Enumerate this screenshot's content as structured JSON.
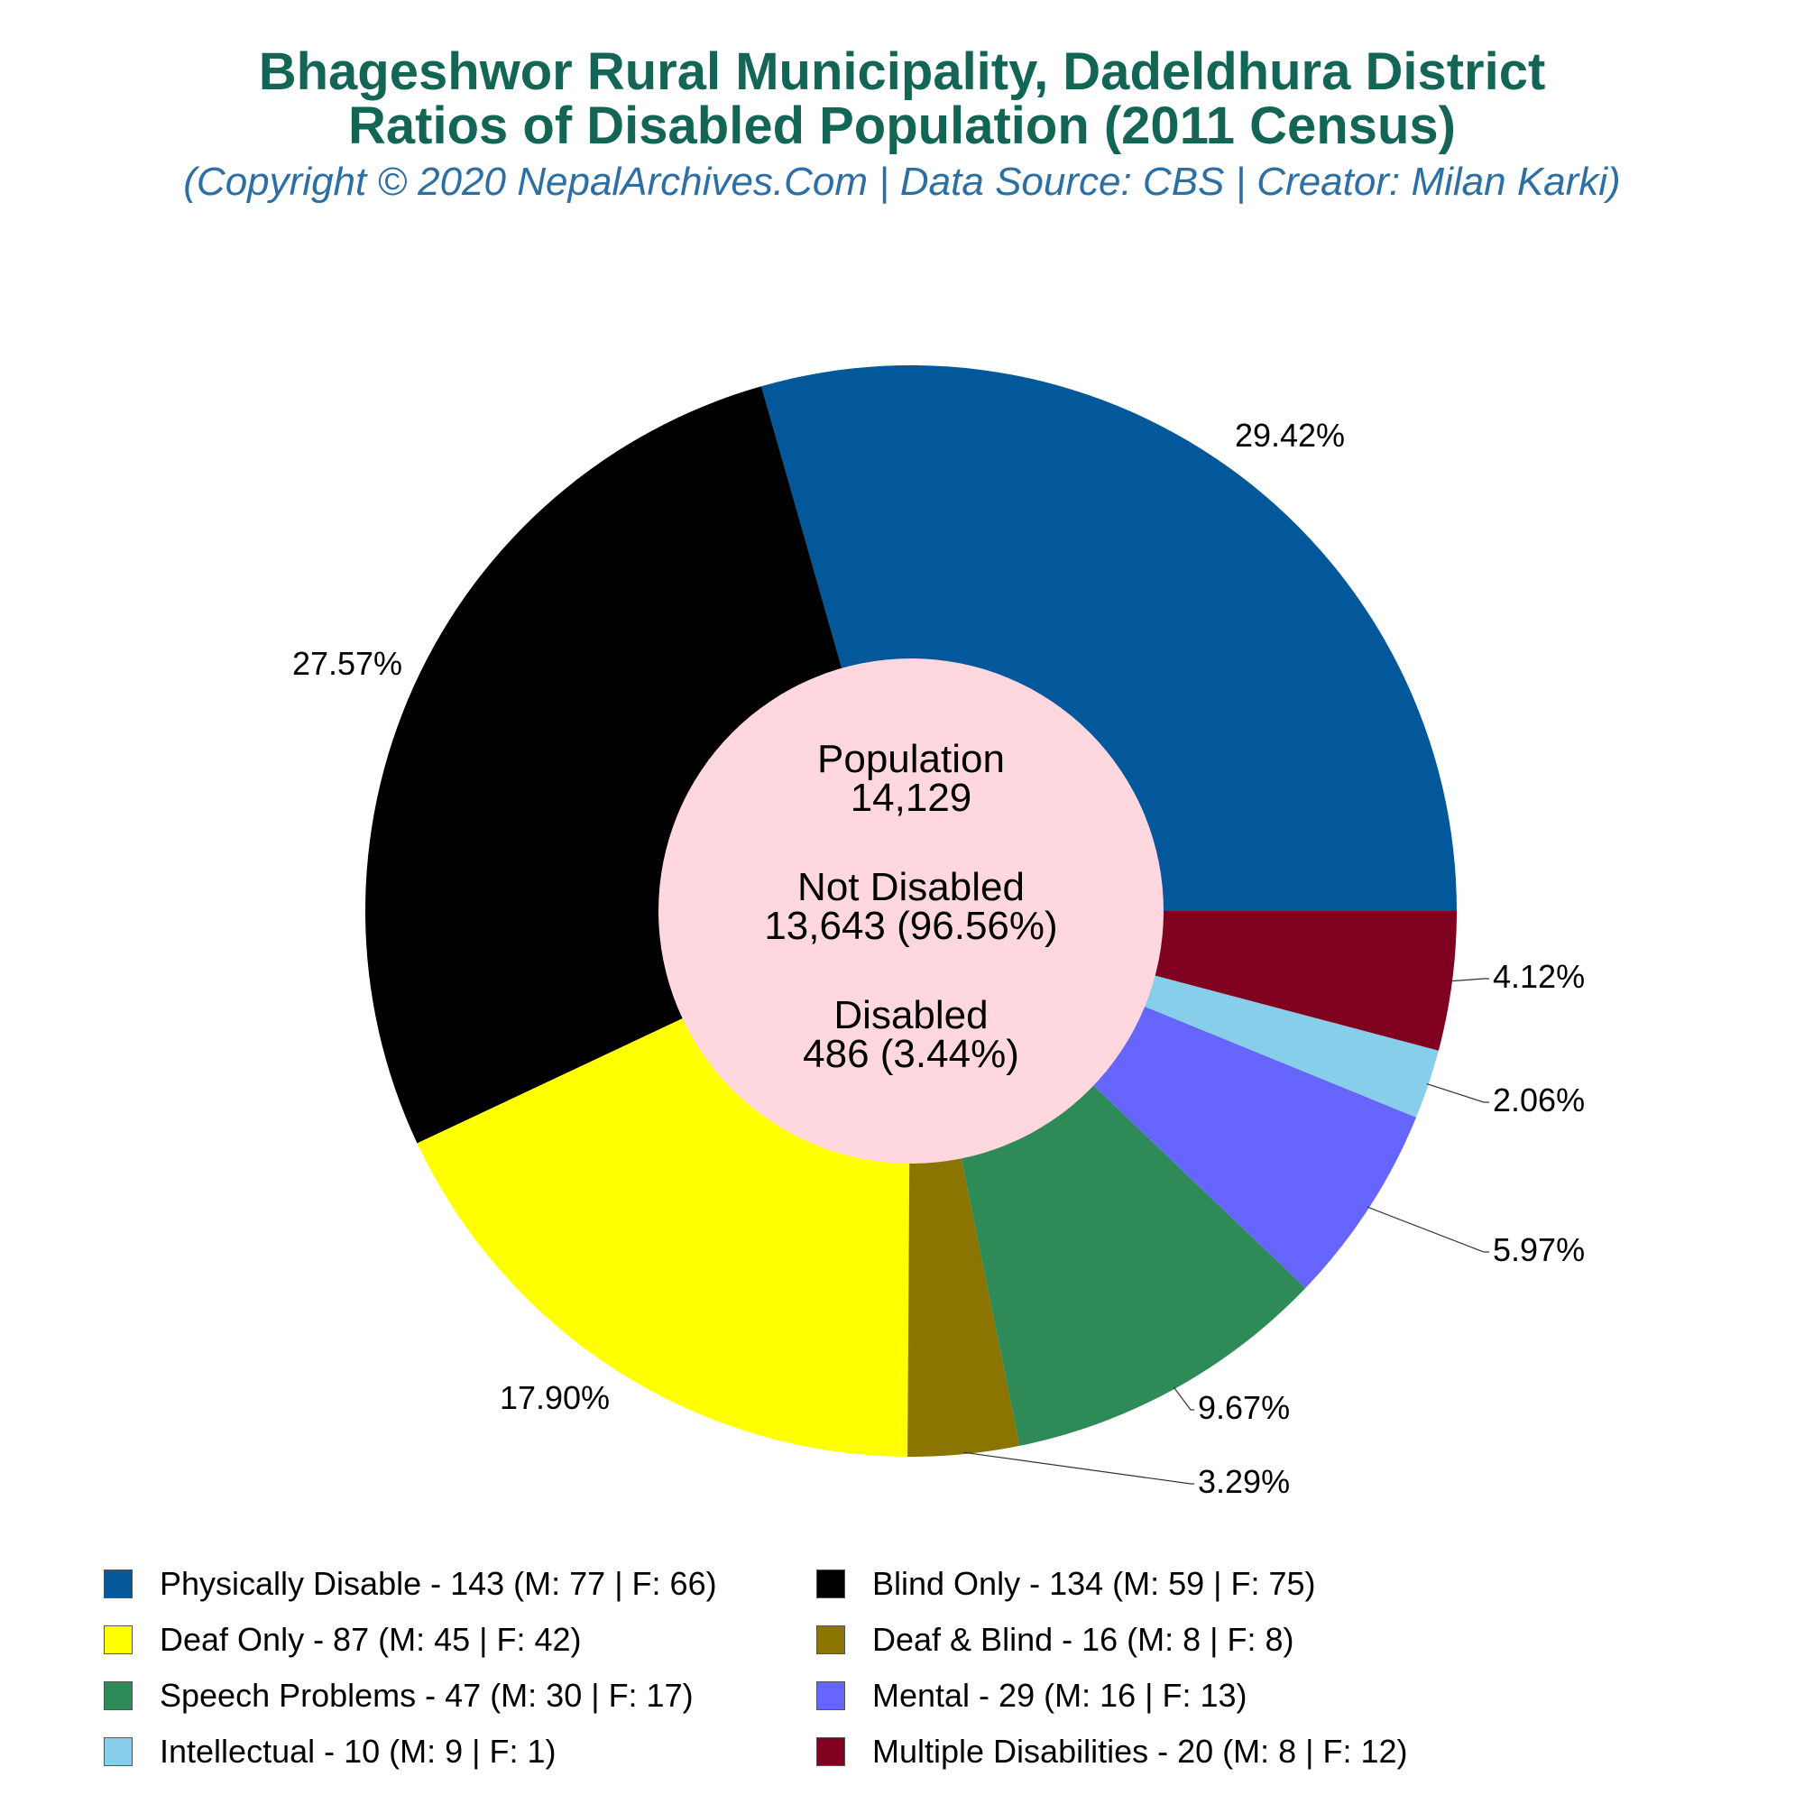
{
  "title_line1": "Bhageshwor Rural Municipality, Dadeldhura District",
  "title_line2": "Ratios of Disabled Population (2011 Census)",
  "subtitle": "(Copyright © 2020 NepalArchives.Com | Data Source: CBS | Creator: Milan Karki)",
  "center": {
    "population_label": "Population",
    "population_value": "14,129",
    "not_disabled_label": "Not Disabled",
    "not_disabled_value": "13,643 (96.56%)",
    "disabled_label": "Disabled",
    "disabled_value": "486 (3.44%)"
  },
  "chart_data": {
    "type": "pie",
    "style": "donut",
    "start": "3 o'clock, counter-clockwise",
    "slices": [
      {
        "name": "Physically Disable",
        "value": 143,
        "male": 77,
        "female": 66,
        "pct_label": "29.42%",
        "color": "#02589b",
        "legend": "Physically Disable - 143 (M: 77 | F: 66)"
      },
      {
        "name": "Blind Only",
        "value": 134,
        "male": 59,
        "female": 75,
        "pct_label": "27.57%",
        "color": "#000000",
        "legend": "Blind Only - 134 (M: 59 | F: 75)"
      },
      {
        "name": "Deaf Only",
        "value": 87,
        "male": 45,
        "female": 42,
        "pct_label": "17.90%",
        "color": "#ffff00",
        "legend": "Deaf Only - 87 (M: 45 | F: 42)"
      },
      {
        "name": "Deaf & Blind",
        "value": 16,
        "male": 8,
        "female": 8,
        "pct_label": "3.29%",
        "color": "#8b7400",
        "legend": "Deaf & Blind - 16 (M: 8 | F: 8)"
      },
      {
        "name": "Speech Problems",
        "value": 47,
        "male": 30,
        "female": 17,
        "pct_label": "9.67%",
        "color": "#2e8b57",
        "legend": "Speech Problems - 47 (M: 30 | F: 17)"
      },
      {
        "name": "Mental",
        "value": 29,
        "male": 16,
        "female": 13,
        "pct_label": "5.97%",
        "color": "#6666ff",
        "legend": "Mental - 29 (M: 16 | F: 13)"
      },
      {
        "name": "Intellectual",
        "value": 10,
        "male": 9,
        "female": 1,
        "pct_label": "2.06%",
        "color": "#87ceeb",
        "legend": "Intellectual - 10 (M: 9 | F: 1)"
      },
      {
        "name": "Multiple Disabilities",
        "value": 20,
        "male": 8,
        "female": 12,
        "pct_label": "4.12%",
        "color": "#800020",
        "legend": "Multiple Disabilities - 20 (M: 8 | F: 12)"
      }
    ],
    "center_color": "#ffd7de"
  }
}
